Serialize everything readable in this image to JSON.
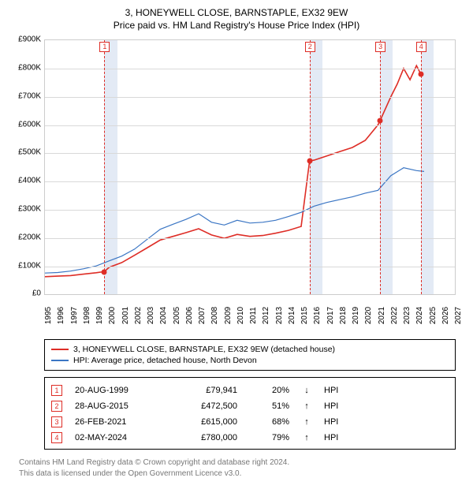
{
  "title_line1": "3, HONEYWELL CLOSE, BARNSTAPLE, EX32 9EW",
  "title_line2": "Price paid vs. HM Land Registry's House Price Index (HPI)",
  "chart": {
    "type": "line",
    "x": {
      "min": 1995,
      "max": 2027,
      "ticks": [
        1995,
        1996,
        1997,
        1998,
        1999,
        2000,
        2001,
        2002,
        2003,
        2004,
        2005,
        2006,
        2007,
        2008,
        2009,
        2010,
        2011,
        2012,
        2013,
        2014,
        2015,
        2016,
        2017,
        2018,
        2019,
        2020,
        2021,
        2022,
        2023,
        2024,
        2025,
        2026,
        2027
      ],
      "fontsize": 10
    },
    "y": {
      "min": 0,
      "max": 900000,
      "tick_step": 100000,
      "tick_labels": [
        "£0",
        "£100K",
        "£200K",
        "£300K",
        "£400K",
        "£500K",
        "£600K",
        "£700K",
        "£800K",
        "£900K"
      ],
      "fontsize": 10
    },
    "background_color": "#ffffff",
    "grid_color": "#d9d9d9",
    "band_color": "#e3eaf5",
    "sale_bands": [
      {
        "from": 1999.64,
        "to": 2000.64
      },
      {
        "from": 2015.66,
        "to": 2016.66
      },
      {
        "from": 2021.16,
        "to": 2022.16
      },
      {
        "from": 2024.34,
        "to": 2025.34
      }
    ],
    "sale_vlines": [
      1999.64,
      2015.66,
      2021.16,
      2024.34
    ],
    "vline_color": "#de2d26",
    "marker_border_color": "#de2d26",
    "markers_top": [
      {
        "x": 1999.64,
        "label": "1"
      },
      {
        "x": 2015.66,
        "label": "2"
      },
      {
        "x": 2021.16,
        "label": "3"
      },
      {
        "x": 2024.34,
        "label": "4"
      }
    ],
    "series": [
      {
        "id": "property",
        "color": "#de2d26",
        "width": 1.6,
        "points": [
          [
            1995,
            62000
          ],
          [
            1996,
            64000
          ],
          [
            1997,
            66000
          ],
          [
            1998,
            71000
          ],
          [
            1999,
            76000
          ],
          [
            1999.64,
            79941
          ],
          [
            2000,
            95000
          ],
          [
            2001,
            112000
          ],
          [
            2002,
            138000
          ],
          [
            2003,
            165000
          ],
          [
            2004,
            192000
          ],
          [
            2005,
            205000
          ],
          [
            2006,
            218000
          ],
          [
            2007,
            232000
          ],
          [
            2008,
            210000
          ],
          [
            2009,
            198000
          ],
          [
            2010,
            212000
          ],
          [
            2011,
            205000
          ],
          [
            2012,
            208000
          ],
          [
            2013,
            216000
          ],
          [
            2014,
            226000
          ],
          [
            2015,
            240000
          ],
          [
            2015.66,
            472500
          ],
          [
            2016,
            475000
          ],
          [
            2017,
            490000
          ],
          [
            2018,
            505000
          ],
          [
            2019,
            520000
          ],
          [
            2020,
            545000
          ],
          [
            2021,
            600000
          ],
          [
            2021.16,
            615000
          ],
          [
            2022,
            700000
          ],
          [
            2022.5,
            745000
          ],
          [
            2023,
            800000
          ],
          [
            2023.5,
            760000
          ],
          [
            2024,
            810000
          ],
          [
            2024.34,
            780000
          ]
        ],
        "dots": [
          [
            1999.64,
            79941
          ],
          [
            2015.66,
            472500
          ],
          [
            2021.16,
            615000
          ],
          [
            2024.34,
            780000
          ]
        ]
      },
      {
        "id": "hpi",
        "color": "#3b76c4",
        "width": 1.2,
        "points": [
          [
            1995,
            75000
          ],
          [
            1996,
            77000
          ],
          [
            1997,
            82000
          ],
          [
            1998,
            90000
          ],
          [
            1999,
            100000
          ],
          [
            2000,
            118000
          ],
          [
            2001,
            135000
          ],
          [
            2002,
            160000
          ],
          [
            2003,
            195000
          ],
          [
            2004,
            230000
          ],
          [
            2005,
            248000
          ],
          [
            2006,
            265000
          ],
          [
            2007,
            285000
          ],
          [
            2008,
            255000
          ],
          [
            2009,
            245000
          ],
          [
            2010,
            262000
          ],
          [
            2011,
            252000
          ],
          [
            2012,
            255000
          ],
          [
            2013,
            262000
          ],
          [
            2014,
            275000
          ],
          [
            2015,
            290000
          ],
          [
            2016,
            312000
          ],
          [
            2017,
            325000
          ],
          [
            2018,
            335000
          ],
          [
            2019,
            345000
          ],
          [
            2020,
            358000
          ],
          [
            2021,
            368000
          ],
          [
            2022,
            420000
          ],
          [
            2023,
            448000
          ],
          [
            2024,
            438000
          ],
          [
            2024.6,
            435000
          ]
        ]
      }
    ]
  },
  "legend": {
    "items": [
      {
        "color": "#de2d26",
        "label": "3, HONEYWELL CLOSE, BARNSTAPLE, EX32 9EW (detached house)"
      },
      {
        "color": "#3b76c4",
        "label": "HPI: Average price, detached house, North Devon"
      }
    ]
  },
  "sales": [
    {
      "n": "1",
      "date": "20-AUG-1999",
      "price": "£79,941",
      "pct": "20%",
      "dir": "↓",
      "vs": "HPI"
    },
    {
      "n": "2",
      "date": "28-AUG-2015",
      "price": "£472,500",
      "pct": "51%",
      "dir": "↑",
      "vs": "HPI"
    },
    {
      "n": "3",
      "date": "26-FEB-2021",
      "price": "£615,000",
      "pct": "68%",
      "dir": "↑",
      "vs": "HPI"
    },
    {
      "n": "4",
      "date": "02-MAY-2024",
      "price": "£780,000",
      "pct": "79%",
      "dir": "↑",
      "vs": "HPI"
    }
  ],
  "sale_marker_border": "#de2d26",
  "footer_line1": "Contains HM Land Registry data © Crown copyright and database right 2024.",
  "footer_line2": "This data is licensed under the Open Government Licence v3.0."
}
